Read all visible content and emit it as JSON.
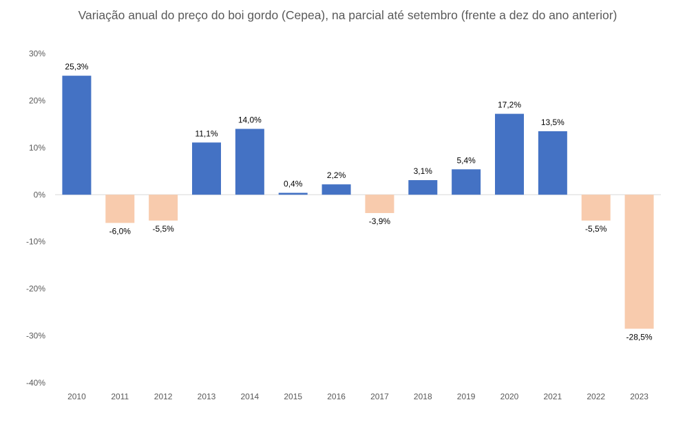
{
  "chart_data": {
    "type": "bar",
    "title": "Variação anual do preço do boi gordo (Cepea), na parcial até setembro (frente a dez do ano anterior)",
    "categories": [
      "2010",
      "2011",
      "2012",
      "2013",
      "2014",
      "2015",
      "2016",
      "2017",
      "2018",
      "2019",
      "2020",
      "2021",
      "2022",
      "2023"
    ],
    "values": [
      25.3,
      -6.0,
      -5.5,
      11.1,
      14.0,
      0.4,
      2.2,
      -3.9,
      3.1,
      5.4,
      17.2,
      13.5,
      -5.5,
      -28.5
    ],
    "data_labels": [
      "25,3%",
      "-6,0%",
      "-5,5%",
      "11,1%",
      "14,0%",
      "0,4%",
      "2,2%",
      "-3,9%",
      "3,1%",
      "5,4%",
      "17,2%",
      "13,5%",
      "-5,5%",
      "-28,5%"
    ],
    "ylim": [
      -40,
      30
    ],
    "yticks": [
      30,
      20,
      10,
      0,
      -10,
      -20,
      -30,
      -40
    ],
    "ytick_labels": [
      "30%",
      "20%",
      "10%",
      "0%",
      "-10%",
      "-20%",
      "-30%",
      "-40%"
    ],
    "xlabel": "",
    "ylabel": "",
    "grid": false,
    "legend": false,
    "colors": {
      "positive": "#4472C4",
      "negative": "#F8CBAD",
      "axis": "#D9D9D9"
    }
  }
}
